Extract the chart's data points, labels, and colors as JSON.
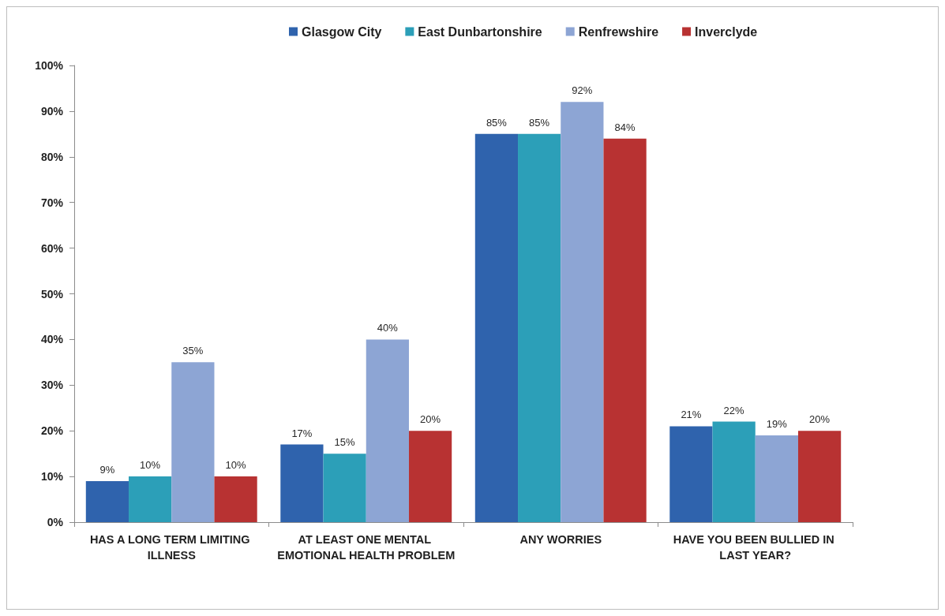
{
  "chart_data": {
    "type": "bar",
    "categories": [
      "HAS A LONG TERM LIMITING ILLNESS",
      "AT LEAST ONE MENTAL EMOTIONAL HEALTH PROBLEM",
      "ANY WORRIES",
      "HAVE YOU BEEN BULLIED IN LAST YEAR?"
    ],
    "series": [
      {
        "name": "Glasgow City",
        "color": "#2f63ad",
        "values": [
          9,
          17,
          85,
          21
        ],
        "value_labels": [
          "9%",
          "17%",
          "85%",
          "21%"
        ]
      },
      {
        "name": "East Dunbartonshire",
        "color": "#2c9fb8",
        "values": [
          10,
          15,
          85,
          22
        ],
        "value_labels": [
          "10%",
          "15%",
          "85%",
          "22%"
        ]
      },
      {
        "name": "Renfrewshire",
        "color": "#8da5d4",
        "values": [
          35,
          40,
          92,
          19
        ],
        "value_labels": [
          "35%",
          "40%",
          "92%",
          "19%"
        ]
      },
      {
        "name": "Inverclyde",
        "color": "#b83232",
        "values": [
          10,
          20,
          84,
          20
        ],
        "value_labels": [
          "10%",
          "20%",
          "84%",
          "20%"
        ]
      }
    ],
    "ylim": [
      0,
      100
    ],
    "yticks": [
      {
        "value": 0,
        "label": "0%"
      },
      {
        "value": 10,
        "label": "10%"
      },
      {
        "value": 20,
        "label": "20%"
      },
      {
        "value": 30,
        "label": "30%"
      },
      {
        "value": 40,
        "label": "40%"
      },
      {
        "value": 50,
        "label": "50%"
      },
      {
        "value": 60,
        "label": "60%"
      },
      {
        "value": 70,
        "label": "70%"
      },
      {
        "value": 80,
        "label": "80%"
      },
      {
        "value": 90,
        "label": "90%"
      },
      {
        "value": 100,
        "label": "100%"
      }
    ],
    "grid": false,
    "legend": "top"
  }
}
